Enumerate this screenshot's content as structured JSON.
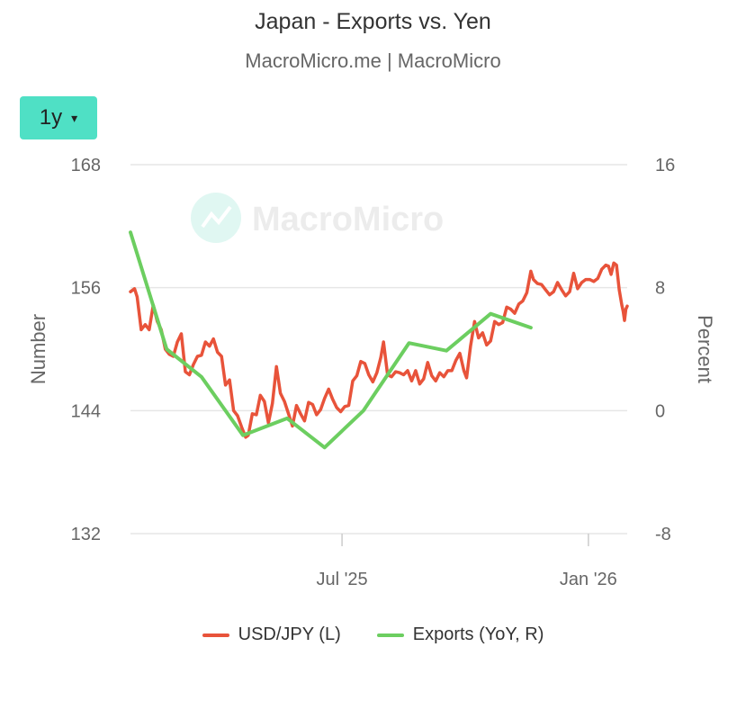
{
  "title": "Japan - Exports vs. Yen",
  "subtitle": "MacroMicro.me | MacroMicro",
  "range_selector": {
    "label": "1y",
    "arrow": "▾"
  },
  "watermark": "MacroMicro",
  "colors": {
    "usdjpy": "#e8533a",
    "exports": "#6cce60",
    "grid": "#e6e6e6",
    "button": "#4fe0c5"
  },
  "chart_data": {
    "type": "line",
    "title": "Japan - Exports vs. Yen",
    "left_axis": {
      "label": "Number",
      "ticks": [
        "168",
        "156",
        "144",
        "132"
      ],
      "range": [
        132,
        168
      ]
    },
    "right_axis": {
      "label": "Percent",
      "ticks": [
        "16",
        "8",
        "0",
        "-8"
      ],
      "range": [
        -8,
        16
      ]
    },
    "x_axis": {
      "ticks": [
        "Jul '25",
        "Jan '26"
      ]
    },
    "grid": true,
    "legend_position": "bottom",
    "series": [
      {
        "name": "USD/JPY (L)",
        "axis": "left",
        "values": [
          [
            "2025-01-24",
            155.6
          ],
          [
            "2025-01-27",
            155.9
          ],
          [
            "2025-01-29",
            155.1
          ],
          [
            "2025-02-01",
            151.9
          ],
          [
            "2025-02-04",
            152.4
          ],
          [
            "2025-02-07",
            151.9
          ],
          [
            "2025-02-10",
            154.3
          ],
          [
            "2025-02-13",
            152.7
          ],
          [
            "2025-02-16",
            151.9
          ],
          [
            "2025-02-19",
            150.0
          ],
          [
            "2025-02-22",
            149.5
          ],
          [
            "2025-02-25",
            149.3
          ],
          [
            "2025-02-28",
            150.7
          ],
          [
            "2025-03-03",
            151.5
          ],
          [
            "2025-03-06",
            147.8
          ],
          [
            "2025-03-09",
            147.5
          ],
          [
            "2025-03-12",
            148.5
          ],
          [
            "2025-03-15",
            149.3
          ],
          [
            "2025-03-18",
            149.4
          ],
          [
            "2025-03-21",
            150.7
          ],
          [
            "2025-03-24",
            150.3
          ],
          [
            "2025-03-27",
            151.0
          ],
          [
            "2025-03-30",
            149.7
          ],
          [
            "2025-04-02",
            149.3
          ],
          [
            "2025-04-05",
            146.5
          ],
          [
            "2025-04-08",
            147.0
          ],
          [
            "2025-04-11",
            144.0
          ],
          [
            "2025-04-14",
            143.5
          ],
          [
            "2025-04-17",
            142.4
          ],
          [
            "2025-04-20",
            141.4
          ],
          [
            "2025-04-22",
            141.6
          ],
          [
            "2025-04-25",
            143.7
          ],
          [
            "2025-04-28",
            143.6
          ],
          [
            "2025-05-01",
            145.5
          ],
          [
            "2025-05-04",
            144.9
          ],
          [
            "2025-05-07",
            142.8
          ],
          [
            "2025-05-10",
            144.7
          ],
          [
            "2025-05-13",
            148.3
          ],
          [
            "2025-05-16",
            145.7
          ],
          [
            "2025-05-19",
            144.9
          ],
          [
            "2025-05-22",
            143.7
          ],
          [
            "2025-05-25",
            142.5
          ],
          [
            "2025-05-28",
            144.5
          ],
          [
            "2025-05-31",
            143.7
          ],
          [
            "2025-06-03",
            143.0
          ],
          [
            "2025-06-06",
            144.8
          ],
          [
            "2025-06-09",
            144.6
          ],
          [
            "2025-06-12",
            143.6
          ],
          [
            "2025-06-15",
            144.1
          ],
          [
            "2025-06-18",
            145.2
          ],
          [
            "2025-06-21",
            146.1
          ],
          [
            "2025-06-24",
            145.1
          ],
          [
            "2025-06-27",
            144.3
          ],
          [
            "2025-06-30",
            143.9
          ],
          [
            "2025-07-03",
            144.4
          ],
          [
            "2025-07-06",
            144.5
          ],
          [
            "2025-07-09",
            146.9
          ],
          [
            "2025-07-12",
            147.4
          ],
          [
            "2025-07-15",
            148.8
          ],
          [
            "2025-07-18",
            148.6
          ],
          [
            "2025-07-21",
            147.5
          ],
          [
            "2025-07-24",
            146.8
          ],
          [
            "2025-07-27",
            147.7
          ],
          [
            "2025-07-30",
            149.2
          ],
          [
            "2025-08-01",
            150.7
          ],
          [
            "2025-08-04",
            147.5
          ],
          [
            "2025-08-07",
            147.3
          ],
          [
            "2025-08-10",
            147.8
          ],
          [
            "2025-08-13",
            147.7
          ],
          [
            "2025-08-16",
            147.5
          ],
          [
            "2025-08-19",
            147.9
          ],
          [
            "2025-08-22",
            146.9
          ],
          [
            "2025-08-25",
            147.9
          ],
          [
            "2025-08-28",
            146.6
          ],
          [
            "2025-08-31",
            147.1
          ],
          [
            "2025-09-03",
            148.7
          ],
          [
            "2025-09-06",
            147.4
          ],
          [
            "2025-09-09",
            146.9
          ],
          [
            "2025-09-12",
            147.7
          ],
          [
            "2025-09-15",
            147.3
          ],
          [
            "2025-09-18",
            147.9
          ],
          [
            "2025-09-21",
            147.9
          ],
          [
            "2025-09-24",
            148.9
          ],
          [
            "2025-09-27",
            149.6
          ],
          [
            "2025-09-30",
            147.9
          ],
          [
            "2025-10-02",
            147.2
          ],
          [
            "2025-10-05",
            150.3
          ],
          [
            "2025-10-08",
            152.7
          ],
          [
            "2025-10-11",
            151.1
          ],
          [
            "2025-10-14",
            151.6
          ],
          [
            "2025-10-17",
            150.4
          ],
          [
            "2025-10-20",
            150.8
          ],
          [
            "2025-10-23",
            152.7
          ],
          [
            "2025-10-26",
            152.4
          ],
          [
            "2025-10-29",
            152.6
          ],
          [
            "2025-11-01",
            154.1
          ],
          [
            "2025-11-04",
            153.9
          ],
          [
            "2025-11-07",
            153.5
          ],
          [
            "2025-11-10",
            154.4
          ],
          [
            "2025-11-13",
            154.7
          ],
          [
            "2025-11-16",
            155.5
          ],
          [
            "2025-11-19",
            157.6
          ],
          [
            "2025-11-21",
            156.8
          ],
          [
            "2025-11-24",
            156.4
          ],
          [
            "2025-11-27",
            156.3
          ],
          [
            "2025-11-30",
            155.8
          ],
          [
            "2025-12-03",
            155.3
          ],
          [
            "2025-12-06",
            155.6
          ],
          [
            "2025-12-09",
            156.5
          ],
          [
            "2025-12-12",
            155.8
          ],
          [
            "2025-12-15",
            155.2
          ],
          [
            "2025-12-18",
            155.6
          ],
          [
            "2025-12-21",
            157.4
          ],
          [
            "2025-12-24",
            155.9
          ],
          [
            "2025-12-27",
            156.5
          ],
          [
            "2025-12-30",
            156.8
          ],
          [
            "2026-01-02",
            156.8
          ],
          [
            "2026-01-05",
            156.6
          ],
          [
            "2026-01-08",
            156.9
          ],
          [
            "2026-01-11",
            157.8
          ],
          [
            "2026-01-14",
            158.2
          ],
          [
            "2026-01-16",
            158.1
          ],
          [
            "2026-01-18",
            157.3
          ],
          [
            "2026-01-20",
            158.4
          ],
          [
            "2026-01-22",
            158.2
          ],
          [
            "2026-01-24",
            155.8
          ],
          [
            "2026-01-26",
            154.3
          ],
          [
            "2026-01-27",
            153.7
          ],
          [
            "2026-01-28",
            152.8
          ],
          [
            "2026-01-29",
            153.9
          ],
          [
            "2026-01-30",
            154.2
          ]
        ]
      },
      {
        "name": "Exports (YoY, R)",
        "axis": "right",
        "values": [
          [
            "2025-01-24",
            11.6
          ],
          [
            "2025-02-20",
            4.0
          ],
          [
            "2025-03-18",
            2.2
          ],
          [
            "2025-04-18",
            -1.6
          ],
          [
            "2025-05-21",
            -0.5
          ],
          [
            "2025-06-18",
            -2.4
          ],
          [
            "2025-07-17",
            0.0
          ],
          [
            "2025-08-20",
            4.4
          ],
          [
            "2025-09-17",
            3.9
          ],
          [
            "2025-10-20",
            6.3
          ],
          [
            "2025-11-19",
            5.4
          ]
        ]
      }
    ]
  },
  "legend": [
    {
      "label": "USD/JPY (L)",
      "color": "#e8533a"
    },
    {
      "label": "Exports (YoY, R)",
      "color": "#6cce60"
    }
  ]
}
